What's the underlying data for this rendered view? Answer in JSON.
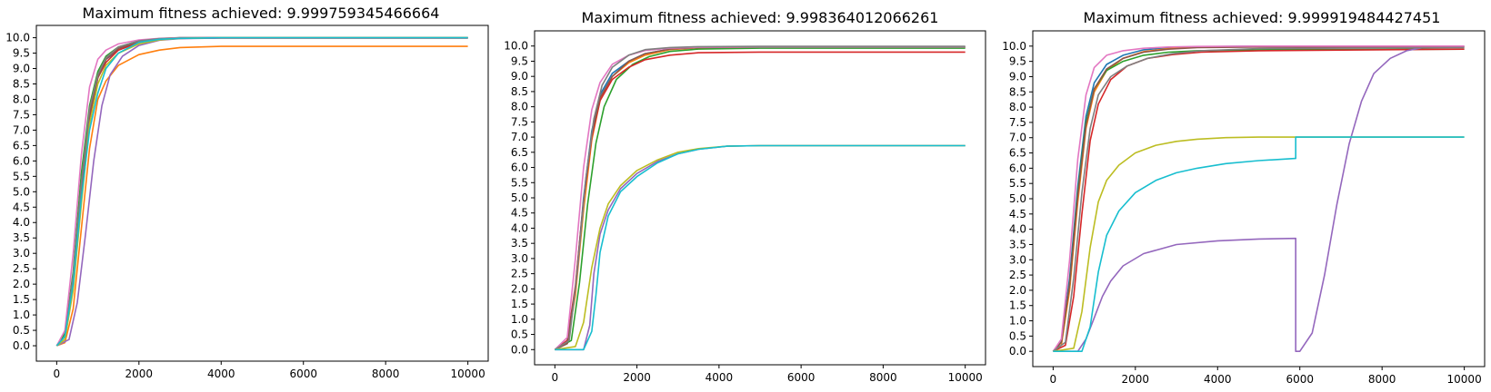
{
  "palette": [
    "#1f77b4",
    "#ff7f0e",
    "#2ca02c",
    "#d62728",
    "#9467bd",
    "#8c564b",
    "#e377c2",
    "#7f7f7f",
    "#bcbd22",
    "#17becf"
  ],
  "chart_data": [
    {
      "type": "line",
      "title": "Maximum fitness achieved: 9.999759345466664",
      "xlabel": "",
      "ylabel": "",
      "xlim": [
        0,
        10000
      ],
      "ylim": [
        -0.5,
        10.4
      ],
      "x_ticks": [
        0,
        2000,
        4000,
        6000,
        8000,
        10000
      ],
      "y_ticks": [
        0.0,
        0.5,
        1.0,
        1.5,
        2.0,
        2.5,
        3.0,
        3.5,
        4.0,
        4.5,
        5.0,
        5.5,
        6.0,
        6.5,
        7.0,
        7.5,
        8.0,
        8.5,
        9.0,
        9.5,
        10.0
      ],
      "grid": false,
      "legend": "none",
      "series": [
        {
          "color": "#1f77b4",
          "x": [
            0,
            200,
            400,
            600,
            800,
            1000,
            1200,
            1500,
            2000,
            2500,
            3000,
            4000,
            10000
          ],
          "y": [
            0,
            0.3,
            2.2,
            5.2,
            7.6,
            8.8,
            9.3,
            9.6,
            9.85,
            9.95,
            10.0,
            10.0,
            10.0
          ]
        },
        {
          "color": "#ff7f0e",
          "x": [
            0,
            200,
            400,
            600,
            800,
            1000,
            1200,
            1500,
            2000,
            2500,
            3000,
            4000,
            10000
          ],
          "y": [
            0,
            0.1,
            1.2,
            3.8,
            6.4,
            8.0,
            8.6,
            9.1,
            9.45,
            9.6,
            9.68,
            9.72,
            9.72
          ]
        },
        {
          "color": "#2ca02c",
          "x": [
            0,
            200,
            400,
            600,
            800,
            1000,
            1200,
            1500,
            2000,
            2500,
            3000,
            4000,
            10000
          ],
          "y": [
            0,
            0.4,
            2.4,
            5.6,
            7.8,
            8.9,
            9.4,
            9.7,
            9.9,
            9.97,
            10.0,
            10.0,
            10.0
          ]
        },
        {
          "color": "#d62728",
          "x": [
            0,
            200,
            400,
            600,
            800,
            1000,
            1200,
            1500,
            2000,
            2500,
            3000,
            4000,
            10000
          ],
          "y": [
            0,
            0.3,
            2.0,
            5.0,
            7.4,
            8.7,
            9.2,
            9.6,
            9.85,
            9.95,
            9.98,
            9.99,
            9.99
          ]
        },
        {
          "color": "#9467bd",
          "x": [
            0,
            300,
            500,
            700,
            900,
            1100,
            1300,
            1600,
            2000,
            2500,
            3000,
            4000,
            10000
          ],
          "y": [
            0,
            0.2,
            1.4,
            3.6,
            6.0,
            7.8,
            8.8,
            9.4,
            9.75,
            9.92,
            9.97,
            9.99,
            9.99
          ]
        },
        {
          "color": "#8c564b",
          "x": [
            0,
            200,
            400,
            600,
            800,
            1000,
            1200,
            1500,
            2000,
            2500,
            3000,
            4000,
            10000
          ],
          "y": [
            0,
            0.3,
            2.1,
            5.1,
            7.5,
            8.7,
            9.3,
            9.65,
            9.88,
            9.96,
            9.99,
            10.0,
            10.0
          ]
        },
        {
          "color": "#e377c2",
          "x": [
            0,
            200,
            400,
            600,
            800,
            1000,
            1200,
            1500,
            2000,
            2500,
            3000,
            4000,
            10000
          ],
          "y": [
            0,
            0.5,
            3.0,
            6.2,
            8.4,
            9.3,
            9.6,
            9.8,
            9.93,
            9.98,
            10.0,
            10.0,
            10.0
          ]
        },
        {
          "color": "#7f7f7f",
          "x": [
            0,
            200,
            400,
            600,
            800,
            1000,
            1200,
            1500,
            2000,
            2500,
            3000,
            4000,
            10000
          ],
          "y": [
            0,
            0.3,
            2.3,
            5.3,
            7.7,
            8.8,
            9.35,
            9.7,
            9.9,
            9.97,
            9.99,
            10.0,
            10.0
          ]
        },
        {
          "color": "#bcbd22",
          "x": [
            0,
            200,
            400,
            600,
            800,
            1000,
            1200,
            1500,
            2000,
            2500,
            3000,
            4000,
            10000
          ],
          "y": [
            0,
            0.2,
            1.8,
            4.6,
            7.2,
            8.5,
            9.1,
            9.5,
            9.8,
            9.93,
            9.98,
            10.0,
            10.0
          ]
        },
        {
          "color": "#17becf",
          "x": [
            0,
            200,
            400,
            600,
            800,
            1000,
            1200,
            1500,
            2000,
            2500,
            3000,
            4000,
            10000
          ],
          "y": [
            0,
            0.3,
            2.0,
            4.8,
            7.0,
            8.2,
            9.0,
            9.5,
            9.85,
            9.95,
            9.98,
            10.0,
            10.0
          ]
        }
      ]
    },
    {
      "type": "line",
      "title": "Maximum fitness achieved: 9.998364012066261",
      "xlabel": "",
      "ylabel": "",
      "xlim": [
        0,
        10000
      ],
      "ylim": [
        -0.5,
        10.5
      ],
      "x_ticks": [
        0,
        2000,
        4000,
        6000,
        8000,
        10000
      ],
      "y_ticks": [
        0.0,
        0.5,
        1.0,
        1.5,
        2.0,
        2.5,
        3.0,
        3.5,
        4.0,
        4.5,
        5.0,
        5.5,
        6.0,
        6.5,
        7.0,
        7.5,
        8.0,
        8.5,
        9.0,
        9.5,
        10.0
      ],
      "grid": false,
      "legend": "none",
      "series": [
        {
          "color": "#1f77b4",
          "x": [
            0,
            300,
            500,
            700,
            900,
            1100,
            1400,
            1800,
            2200,
            2800,
            3500,
            5000,
            10000
          ],
          "y": [
            0,
            0.2,
            2.0,
            5.0,
            7.2,
            8.4,
            9.1,
            9.5,
            9.75,
            9.9,
            9.95,
            9.97,
            9.97
          ]
        },
        {
          "color": "#ff7f0e",
          "x": [
            0,
            300,
            500,
            700,
            900,
            1100,
            1400,
            1800,
            2200,
            2800,
            3500,
            5000,
            10000
          ],
          "y": [
            0,
            0.2,
            1.8,
            4.6,
            6.9,
            8.2,
            9.0,
            9.45,
            9.7,
            9.88,
            9.94,
            9.96,
            9.96
          ]
        },
        {
          "color": "#2ca02c",
          "x": [
            0,
            400,
            600,
            800,
            1000,
            1200,
            1500,
            1900,
            2300,
            2800,
            3500,
            5000,
            10000
          ],
          "y": [
            0,
            0.3,
            2.2,
            4.8,
            6.8,
            8.0,
            8.9,
            9.4,
            9.65,
            9.82,
            9.9,
            9.93,
            9.93
          ]
        },
        {
          "color": "#d62728",
          "x": [
            0,
            300,
            500,
            700,
            900,
            1100,
            1400,
            1800,
            2200,
            2800,
            3500,
            5000,
            10000
          ],
          "y": [
            0,
            0.3,
            2.1,
            4.9,
            7.0,
            8.2,
            8.9,
            9.3,
            9.55,
            9.7,
            9.78,
            9.8,
            9.8
          ]
        },
        {
          "color": "#9467bd",
          "x": [
            0,
            700,
            850,
            950,
            1100,
            1300,
            1600,
            2000,
            2500,
            3000,
            3500,
            4200,
            5000,
            10000
          ],
          "y": [
            0,
            0,
            0.8,
            2.5,
            3.8,
            4.6,
            5.3,
            5.8,
            6.2,
            6.45,
            6.6,
            6.7,
            6.72,
            6.72
          ]
        },
        {
          "color": "#8c564b",
          "x": [
            0,
            300,
            500,
            700,
            900,
            1100,
            1400,
            1800,
            2200,
            2800,
            3500,
            5000,
            10000
          ],
          "y": [
            0,
            0.2,
            2.0,
            4.9,
            7.1,
            8.3,
            9.0,
            9.5,
            9.75,
            9.9,
            9.95,
            9.97,
            9.97
          ]
        },
        {
          "color": "#e377c2",
          "x": [
            0,
            300,
            500,
            700,
            900,
            1100,
            1400,
            1800,
            2200,
            2800,
            3500,
            5000,
            10000
          ],
          "y": [
            0,
            0.4,
            3.0,
            6.0,
            7.9,
            8.8,
            9.4,
            9.7,
            9.85,
            9.93,
            9.96,
            9.97,
            9.97
          ]
        },
        {
          "color": "#7f7f7f",
          "x": [
            0,
            350,
            550,
            750,
            950,
            1150,
            1400,
            1800,
            2200,
            2800,
            3500,
            5000,
            10000
          ],
          "y": [
            0,
            0.3,
            2.6,
            5.6,
            7.6,
            8.7,
            9.3,
            9.7,
            9.88,
            9.95,
            9.98,
            9.99,
            9.99
          ]
        },
        {
          "color": "#bcbd22",
          "x": [
            0,
            500,
            700,
            900,
            1100,
            1300,
            1600,
            2000,
            2500,
            3000,
            3500,
            4200,
            5000,
            10000
          ],
          "y": [
            0,
            0.1,
            0.9,
            2.7,
            4.0,
            4.8,
            5.4,
            5.9,
            6.25,
            6.5,
            6.62,
            6.7,
            6.72,
            6.72
          ]
        },
        {
          "color": "#17becf",
          "x": [
            0,
            700,
            900,
            1000,
            1100,
            1300,
            1600,
            2000,
            2500,
            3000,
            3500,
            4200,
            5000,
            10000
          ],
          "y": [
            0,
            0,
            0.6,
            1.8,
            3.2,
            4.4,
            5.2,
            5.7,
            6.15,
            6.45,
            6.6,
            6.7,
            6.72,
            6.72
          ]
        }
      ]
    },
    {
      "type": "line",
      "title": "Maximum fitness achieved: 9.999919484427451",
      "xlabel": "",
      "ylabel": "",
      "xlim": [
        0,
        10000
      ],
      "ylim": [
        -0.5,
        10.5
      ],
      "x_ticks": [
        0,
        2000,
        4000,
        6000,
        8000,
        10000
      ],
      "y_ticks": [
        0.0,
        0.5,
        1.0,
        1.5,
        2.0,
        2.5,
        3.0,
        3.5,
        4.0,
        4.5,
        5.0,
        5.5,
        6.0,
        6.5,
        7.0,
        7.5,
        8.0,
        8.5,
        9.0,
        9.5,
        10.0
      ],
      "grid": false,
      "legend": "none",
      "series": [
        {
          "color": "#1f77b4",
          "x": [
            0,
            200,
            400,
            600,
            800,
            1000,
            1300,
            1700,
            2200,
            2800,
            3500,
            5000,
            10000
          ],
          "y": [
            0,
            0.3,
            2.4,
            5.4,
            7.7,
            8.8,
            9.4,
            9.7,
            9.88,
            9.95,
            9.98,
            10.0,
            10.0
          ]
        },
        {
          "color": "#ff7f0e",
          "x": [
            0,
            200,
            400,
            600,
            800,
            1000,
            1300,
            1700,
            2200,
            2800,
            3500,
            5000,
            10000
          ],
          "y": [
            0,
            0.2,
            2.0,
            4.9,
            7.3,
            8.5,
            9.2,
            9.6,
            9.82,
            9.92,
            9.96,
            9.98,
            9.98
          ]
        },
        {
          "color": "#2ca02c",
          "x": [
            0,
            200,
            400,
            600,
            800,
            1000,
            1300,
            1700,
            2200,
            2800,
            3500,
            5000,
            10000
          ],
          "y": [
            0,
            0.3,
            2.2,
            5.2,
            7.5,
            8.6,
            9.2,
            9.5,
            9.7,
            9.8,
            9.85,
            9.88,
            9.9
          ]
        },
        {
          "color": "#d62728",
          "x": [
            0,
            300,
            500,
            700,
            900,
            1100,
            1400,
            1800,
            2300,
            2900,
            3600,
            5000,
            10000
          ],
          "y": [
            0,
            0.2,
            1.8,
            4.5,
            6.9,
            8.1,
            8.9,
            9.35,
            9.6,
            9.72,
            9.8,
            9.85,
            9.9
          ]
        },
        {
          "color": "#9467bd",
          "x": [
            0,
            600,
            800,
            1000,
            1200,
            1400,
            1700,
            2200,
            3000,
            4000,
            5000,
            5900,
            5901,
            6000,
            6300,
            6600,
            6900,
            7200,
            7500,
            7800,
            8200,
            8600,
            9000,
            10000
          ],
          "y": [
            0,
            0,
            0.4,
            1.1,
            1.8,
            2.3,
            2.8,
            3.2,
            3.5,
            3.62,
            3.68,
            3.7,
            0.0,
            0.0,
            0.6,
            2.5,
            4.8,
            6.8,
            8.2,
            9.1,
            9.6,
            9.85,
            9.95,
            9.98
          ]
        },
        {
          "color": "#8c564b",
          "x": [
            0,
            200,
            400,
            600,
            800,
            1000,
            1300,
            1700,
            2200,
            2800,
            3500,
            5000,
            10000
          ],
          "y": [
            0,
            0.3,
            2.2,
            5.1,
            7.4,
            8.6,
            9.25,
            9.6,
            9.8,
            9.9,
            9.95,
            9.97,
            9.97
          ]
        },
        {
          "color": "#e377c2",
          "x": [
            0,
            200,
            400,
            600,
            800,
            1000,
            1300,
            1700,
            2200,
            2800,
            3500,
            5000,
            10000
          ],
          "y": [
            0,
            0.4,
            3.0,
            6.3,
            8.4,
            9.3,
            9.7,
            9.85,
            9.93,
            9.97,
            9.99,
            10.0,
            10.0
          ]
        },
        {
          "color": "#7f7f7f",
          "x": [
            0,
            300,
            500,
            700,
            900,
            1100,
            1400,
            1800,
            2300,
            2900,
            3600,
            5000,
            10000
          ],
          "y": [
            0,
            0.3,
            2.4,
            5.2,
            7.3,
            8.4,
            9.0,
            9.35,
            9.6,
            9.75,
            9.85,
            9.92,
            9.95
          ]
        },
        {
          "color": "#bcbd22",
          "x": [
            0,
            500,
            700,
            900,
            1100,
            1300,
            1600,
            2000,
            2500,
            3000,
            3500,
            4200,
            5000,
            10000
          ],
          "y": [
            0,
            0.1,
            1.3,
            3.4,
            4.9,
            5.6,
            6.1,
            6.5,
            6.75,
            6.88,
            6.95,
            7.0,
            7.02,
            7.02
          ]
        },
        {
          "color": "#17becf",
          "x": [
            0,
            700,
            900,
            1100,
            1300,
            1600,
            2000,
            2500,
            3000,
            3500,
            4200,
            5000,
            5900,
            5901,
            10000
          ],
          "y": [
            0,
            0,
            0.8,
            2.6,
            3.8,
            4.6,
            5.2,
            5.6,
            5.85,
            6.0,
            6.15,
            6.25,
            6.32,
            7.02,
            7.02
          ]
        }
      ]
    }
  ]
}
